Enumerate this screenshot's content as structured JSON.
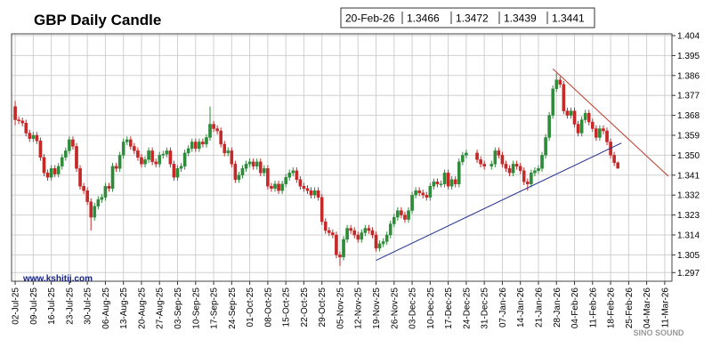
{
  "chart_data": {
    "type": "candlestick",
    "title": "GBP Daily Candle",
    "watermark": "www.kshitij.com",
    "logo": "SINO SOUND",
    "up_color": "#2e8b3a",
    "down_color": "#c62828",
    "grid": true,
    "xlim": [
      "01-Jul-25",
      "13-Mar-26"
    ],
    "ylim": [
      1.2931,
      1.4048
    ],
    "yticks": [
      {
        "value": 1.297,
        "label": "1.297"
      },
      {
        "value": 1.305,
        "label": "1.305"
      },
      {
        "value": 1.314,
        "label": "1.314"
      },
      {
        "value": 1.323,
        "label": "1.323"
      },
      {
        "value": 1.332,
        "label": "1.332"
      },
      {
        "value": 1.341,
        "label": "1.341"
      },
      {
        "value": 1.35,
        "label": "1.350"
      },
      {
        "value": 1.359,
        "label": "1.359"
      },
      {
        "value": 1.368,
        "label": "1.368"
      },
      {
        "value": 1.377,
        "label": "1.377"
      },
      {
        "value": 1.386,
        "label": "1.386"
      },
      {
        "value": 1.395,
        "label": "1.395"
      },
      {
        "value": 1.404,
        "label": "1.404"
      }
    ],
    "xticks": [
      "02-Jul-25",
      "09-Jul-25",
      "16-Jul-25",
      "23-Jul-25",
      "30-Jul-25",
      "06-Aug-25",
      "13-Aug-25",
      "20-Aug-25",
      "27-Aug-25",
      "03-Sep-25",
      "10-Sep-25",
      "17-Sep-25",
      "24-Sep-25",
      "01-Oct-25",
      "08-Oct-25",
      "15-Oct-25",
      "22-Oct-25",
      "29-Oct-25",
      "05-Nov-25",
      "12-Nov-25",
      "19-Nov-25",
      "26-Nov-25",
      "03-Dec-25",
      "10-Dec-25",
      "17-Dec-25",
      "24-Dec-25",
      "31-Dec-25",
      "07-Jan-26",
      "14-Jan-26",
      "21-Jan-26",
      "28-Jan-26",
      "04-Feb-26",
      "11-Feb-26",
      "18-Feb-26",
      "25-Feb-26",
      "04-Mar-26",
      "11-Mar-26"
    ],
    "x": [
      "02-Jul-25",
      "03-Jul-25",
      "04-Jul-25",
      "07-Jul-25",
      "08-Jul-25",
      "09-Jul-25",
      "10-Jul-25",
      "11-Jul-25",
      "14-Jul-25",
      "15-Jul-25",
      "16-Jul-25",
      "17-Jul-25",
      "18-Jul-25",
      "21-Jul-25",
      "22-Jul-25",
      "23-Jul-25",
      "24-Jul-25",
      "25-Jul-25",
      "28-Jul-25",
      "29-Jul-25",
      "30-Jul-25",
      "31-Jul-25",
      "01-Aug-25",
      "04-Aug-25",
      "05-Aug-25",
      "06-Aug-25",
      "07-Aug-25",
      "08-Aug-25",
      "11-Aug-25",
      "12-Aug-25",
      "13-Aug-25",
      "14-Aug-25",
      "15-Aug-25",
      "18-Aug-25",
      "19-Aug-25",
      "20-Aug-25",
      "21-Aug-25",
      "22-Aug-25",
      "25-Aug-25",
      "26-Aug-25",
      "27-Aug-25",
      "28-Aug-25",
      "29-Aug-25",
      "01-Sep-25",
      "02-Sep-25",
      "03-Sep-25",
      "04-Sep-25",
      "05-Sep-25",
      "08-Sep-25",
      "09-Sep-25",
      "10-Sep-25",
      "11-Sep-25",
      "12-Sep-25",
      "15-Sep-25",
      "16-Sep-25",
      "17-Sep-25",
      "18-Sep-25",
      "19-Sep-25",
      "22-Sep-25",
      "23-Sep-25",
      "24-Sep-25",
      "25-Sep-25",
      "26-Sep-25",
      "29-Sep-25",
      "30-Sep-25",
      "01-Oct-25",
      "02-Oct-25",
      "03-Oct-25",
      "06-Oct-25",
      "07-Oct-25",
      "08-Oct-25",
      "09-Oct-25",
      "10-Oct-25",
      "13-Oct-25",
      "14-Oct-25",
      "15-Oct-25",
      "16-Oct-25",
      "17-Oct-25",
      "20-Oct-25",
      "21-Oct-25",
      "22-Oct-25",
      "23-Oct-25",
      "24-Oct-25",
      "27-Oct-25",
      "28-Oct-25",
      "29-Oct-25",
      "30-Oct-25",
      "31-Oct-25",
      "03-Nov-25",
      "04-Nov-25",
      "05-Nov-25",
      "06-Nov-25",
      "07-Nov-25",
      "10-Nov-25",
      "11-Nov-25",
      "12-Nov-25",
      "13-Nov-25",
      "14-Nov-25",
      "17-Nov-25",
      "18-Nov-25",
      "19-Nov-25",
      "20-Nov-25",
      "21-Nov-25",
      "24-Nov-25",
      "25-Nov-25",
      "26-Nov-25",
      "27-Nov-25",
      "28-Nov-25",
      "01-Dec-25",
      "02-Dec-25",
      "03-Dec-25",
      "04-Dec-25",
      "05-Dec-25",
      "08-Dec-25",
      "09-Dec-25",
      "10-Dec-25",
      "11-Dec-25",
      "12-Dec-25",
      "15-Dec-25",
      "16-Dec-25",
      "17-Dec-25",
      "18-Dec-25",
      "19-Dec-25",
      "22-Dec-25",
      "23-Dec-25",
      "24-Dec-25",
      "29-Dec-25",
      "30-Dec-25",
      "31-Dec-25",
      "02-Jan-26",
      "05-Jan-26",
      "06-Jan-26",
      "07-Jan-26",
      "08-Jan-26",
      "09-Jan-26",
      "12-Jan-26",
      "13-Jan-26",
      "14-Jan-26",
      "15-Jan-26",
      "16-Jan-26",
      "19-Jan-26",
      "20-Jan-26",
      "21-Jan-26",
      "22-Jan-26",
      "23-Jan-26",
      "26-Jan-26",
      "27-Jan-26",
      "28-Jan-26",
      "29-Jan-26",
      "30-Jan-26",
      "02-Feb-26",
      "03-Feb-26",
      "04-Feb-26",
      "05-Feb-26",
      "06-Feb-26",
      "09-Feb-26",
      "10-Feb-26",
      "11-Feb-26",
      "12-Feb-26",
      "13-Feb-26",
      "16-Feb-26",
      "17-Feb-26",
      "18-Feb-26",
      "19-Feb-26",
      "20-Feb-26"
    ],
    "open": [
      1.372,
      1.366,
      1.3655,
      1.3645,
      1.36,
      1.3575,
      1.359,
      1.3565,
      1.349,
      1.342,
      1.34,
      1.344,
      1.3415,
      1.345,
      1.349,
      1.352,
      1.357,
      1.354,
      1.344,
      1.336,
      1.334,
      1.329,
      1.322,
      1.327,
      1.33,
      1.331,
      1.336,
      1.335,
      1.345,
      1.344,
      1.35,
      1.356,
      1.357,
      1.354,
      1.352,
      1.349,
      1.346,
      1.348,
      1.352,
      1.347,
      1.346,
      1.35,
      1.3505,
      1.352,
      1.346,
      1.34,
      1.344,
      1.345,
      1.351,
      1.353,
      1.356,
      1.353,
      1.356,
      1.355,
      1.358,
      1.364,
      1.362,
      1.361,
      1.355,
      1.351,
      1.352,
      1.346,
      1.339,
      1.341,
      1.344,
      1.346,
      1.347,
      1.345,
      1.347,
      1.342,
      1.344,
      1.336,
      1.335,
      1.337,
      1.334,
      1.337,
      1.34,
      1.342,
      1.343,
      1.339,
      1.336,
      1.335,
      1.334,
      1.332,
      1.334,
      1.331,
      1.32,
      1.316,
      1.315,
      1.314,
      1.305,
      1.304,
      1.312,
      1.317,
      1.316,
      1.314,
      1.312,
      1.315,
      1.317,
      1.316,
      1.314,
      1.308,
      1.31,
      1.311,
      1.314,
      1.319,
      1.322,
      1.325,
      1.323,
      1.321,
      1.325,
      1.332,
      1.334,
      1.333,
      1.332,
      1.331,
      1.336,
      1.338,
      1.337,
      1.337,
      1.342,
      1.336,
      1.339,
      1.337,
      1.347,
      1.35,
      1.351,
      1.348,
      1.346,
      1.345,
      1.346,
      1.352,
      1.35,
      1.346,
      1.344,
      1.342,
      1.346,
      1.345,
      1.343,
      1.338,
      1.337,
      1.342,
      1.343,
      1.344,
      1.35,
      1.358,
      1.368,
      1.38,
      1.384,
      1.382,
      1.37,
      1.368,
      1.37,
      1.364,
      1.36,
      1.366,
      1.369,
      1.365,
      1.362,
      1.358,
      1.362,
      1.361,
      1.356,
      1.35,
      1.3466
    ],
    "high": [
      1.3745,
      1.3675,
      1.367,
      1.366,
      1.3615,
      1.3605,
      1.3605,
      1.358,
      1.3505,
      1.3435,
      1.3455,
      1.3455,
      1.3465,
      1.3505,
      1.3535,
      1.3585,
      1.3585,
      1.3555,
      1.3455,
      1.3375,
      1.3355,
      1.3305,
      1.3285,
      1.3315,
      1.3325,
      1.3375,
      1.3375,
      1.3465,
      1.3465,
      1.3515,
      1.3575,
      1.3585,
      1.3585,
      1.3555,
      1.3535,
      1.3505,
      1.3495,
      1.3535,
      1.3535,
      1.3485,
      1.3515,
      1.352,
      1.3535,
      1.3535,
      1.3475,
      1.3455,
      1.3465,
      1.3525,
      1.3545,
      1.3575,
      1.3575,
      1.3575,
      1.3575,
      1.3595,
      1.372,
      1.3655,
      1.3635,
      1.3625,
      1.3565,
      1.3535,
      1.3535,
      1.3475,
      1.3425,
      1.3455,
      1.3475,
      1.3485,
      1.3485,
      1.3485,
      1.3485,
      1.3455,
      1.3455,
      1.3375,
      1.3385,
      1.3385,
      1.3385,
      1.3415,
      1.3435,
      1.3445,
      1.3445,
      1.3405,
      1.3375,
      1.3365,
      1.3355,
      1.3355,
      1.3355,
      1.3325,
      1.3215,
      1.3175,
      1.3165,
      1.3155,
      1.3065,
      1.3135,
      1.3185,
      1.3185,
      1.3175,
      1.3155,
      1.3165,
      1.3185,
      1.3185,
      1.3175,
      1.3155,
      1.3115,
      1.3125,
      1.3155,
      1.3205,
      1.3235,
      1.3265,
      1.3265,
      1.3245,
      1.3265,
      1.3335,
      1.3355,
      1.3355,
      1.3345,
      1.3335,
      1.3375,
      1.3395,
      1.3395,
      1.3385,
      1.3435,
      1.3435,
      1.3405,
      1.3405,
      1.3485,
      1.3515,
      1.3525,
      1.3525,
      1.3495,
      1.3475,
      1.3475,
      1.3535,
      1.3535,
      1.3515,
      1.3475,
      1.3455,
      1.3475,
      1.3475,
      1.3465,
      1.3445,
      1.3395,
      1.3435,
      1.3445,
      1.3455,
      1.3515,
      1.3595,
      1.3695,
      1.3815,
      1.387,
      1.3855,
      1.3835,
      1.3715,
      1.3715,
      1.3715,
      1.3655,
      1.3675,
      1.3705,
      1.3705,
      1.3665,
      1.3635,
      1.3635,
      1.3635,
      1.3625,
      1.3575,
      1.3515,
      1.3472
    ],
    "low": [
      1.3635,
      1.364,
      1.363,
      1.3585,
      1.356,
      1.356,
      1.355,
      1.3475,
      1.3405,
      1.3385,
      1.3385,
      1.34,
      1.34,
      1.3435,
      1.3475,
      1.3505,
      1.3525,
      1.3425,
      1.3345,
      1.3325,
      1.3275,
      1.316,
      1.3205,
      1.3255,
      1.3285,
      1.3295,
      1.3335,
      1.3335,
      1.3425,
      1.3425,
      1.3485,
      1.3545,
      1.3525,
      1.3505,
      1.3475,
      1.3445,
      1.3445,
      1.3465,
      1.3455,
      1.3445,
      1.3445,
      1.3485,
      1.349,
      1.3445,
      1.3385,
      1.3385,
      1.3425,
      1.3435,
      1.3495,
      1.3515,
      1.3515,
      1.3515,
      1.3535,
      1.3535,
      1.3565,
      1.3605,
      1.3595,
      1.3535,
      1.3495,
      1.3495,
      1.3445,
      1.3375,
      1.3375,
      1.3395,
      1.3425,
      1.3445,
      1.3435,
      1.3435,
      1.3405,
      1.3405,
      1.3345,
      1.3335,
      1.3335,
      1.3325,
      1.3325,
      1.3355,
      1.3385,
      1.3405,
      1.3375,
      1.3345,
      1.3335,
      1.3325,
      1.3305,
      1.3305,
      1.3295,
      1.3185,
      1.3145,
      1.3135,
      1.3125,
      1.3035,
      1.3,
      1.3025,
      1.3105,
      1.3145,
      1.3125,
      1.3105,
      1.3105,
      1.3135,
      1.3145,
      1.3125,
      1.3065,
      1.3065,
      1.3085,
      1.3095,
      1.3125,
      1.3175,
      1.3205,
      1.3215,
      1.3195,
      1.3195,
      1.3235,
      1.3305,
      1.3315,
      1.3305,
      1.3295,
      1.3295,
      1.3345,
      1.3355,
      1.3355,
      1.3355,
      1.3345,
      1.3345,
      1.3355,
      1.3355,
      1.3455,
      1.3485,
      1.3465,
      1.3445,
      1.3435,
      1.3435,
      1.3445,
      1.3485,
      1.3445,
      1.3425,
      1.3405,
      1.3405,
      1.3435,
      1.3415,
      1.3365,
      1.334,
      1.3355,
      1.3405,
      1.3415,
      1.3425,
      1.3485,
      1.3565,
      1.3665,
      1.3785,
      1.3805,
      1.3685,
      1.3665,
      1.3665,
      1.3625,
      1.3585,
      1.3585,
      1.3645,
      1.3635,
      1.3605,
      1.3565,
      1.3565,
      1.3595,
      1.3545,
      1.3485,
      1.3451,
      1.3439
    ],
    "close": [
      1.366,
      1.3655,
      1.3645,
      1.36,
      1.3575,
      1.359,
      1.3565,
      1.349,
      1.342,
      1.34,
      1.344,
      1.3415,
      1.345,
      1.349,
      1.352,
      1.357,
      1.354,
      1.344,
      1.336,
      1.334,
      1.329,
      1.322,
      1.327,
      1.33,
      1.331,
      1.336,
      1.335,
      1.345,
      1.344,
      1.35,
      1.356,
      1.357,
      1.354,
      1.352,
      1.349,
      1.346,
      1.348,
      1.352,
      1.347,
      1.346,
      1.35,
      1.3505,
      1.352,
      1.346,
      1.34,
      1.344,
      1.345,
      1.351,
      1.353,
      1.356,
      1.353,
      1.356,
      1.355,
      1.358,
      1.364,
      1.362,
      1.361,
      1.355,
      1.351,
      1.352,
      1.346,
      1.339,
      1.341,
      1.344,
      1.346,
      1.347,
      1.345,
      1.347,
      1.342,
      1.344,
      1.336,
      1.335,
      1.337,
      1.334,
      1.337,
      1.34,
      1.342,
      1.343,
      1.339,
      1.336,
      1.335,
      1.334,
      1.332,
      1.334,
      1.331,
      1.32,
      1.316,
      1.315,
      1.314,
      1.305,
      1.304,
      1.312,
      1.317,
      1.316,
      1.314,
      1.312,
      1.315,
      1.317,
      1.316,
      1.314,
      1.308,
      1.31,
      1.311,
      1.314,
      1.319,
      1.322,
      1.325,
      1.323,
      1.321,
      1.325,
      1.332,
      1.334,
      1.333,
      1.332,
      1.331,
      1.336,
      1.338,
      1.337,
      1.337,
      1.342,
      1.336,
      1.339,
      1.337,
      1.347,
      1.35,
      1.351,
      1.348,
      1.346,
      1.345,
      1.346,
      1.352,
      1.35,
      1.346,
      1.344,
      1.342,
      1.346,
      1.345,
      1.343,
      1.338,
      1.337,
      1.342,
      1.343,
      1.344,
      1.35,
      1.358,
      1.368,
      1.38,
      1.384,
      1.382,
      1.37,
      1.368,
      1.37,
      1.364,
      1.36,
      1.366,
      1.369,
      1.365,
      1.362,
      1.358,
      1.362,
      1.361,
      1.356,
      1.35,
      1.3466,
      1.3441
    ],
    "trendlines": [
      {
        "color": "#c0392b",
        "x": [
          "27-Jan-26",
          "12-Mar-26"
        ],
        "y": [
          1.389,
          1.3405
        ]
      },
      {
        "color": "#1f2f8f",
        "x": [
          "19-Nov-25",
          "23-Feb-26"
        ],
        "y": [
          1.3025,
          1.3555
        ]
      }
    ]
  }
}
